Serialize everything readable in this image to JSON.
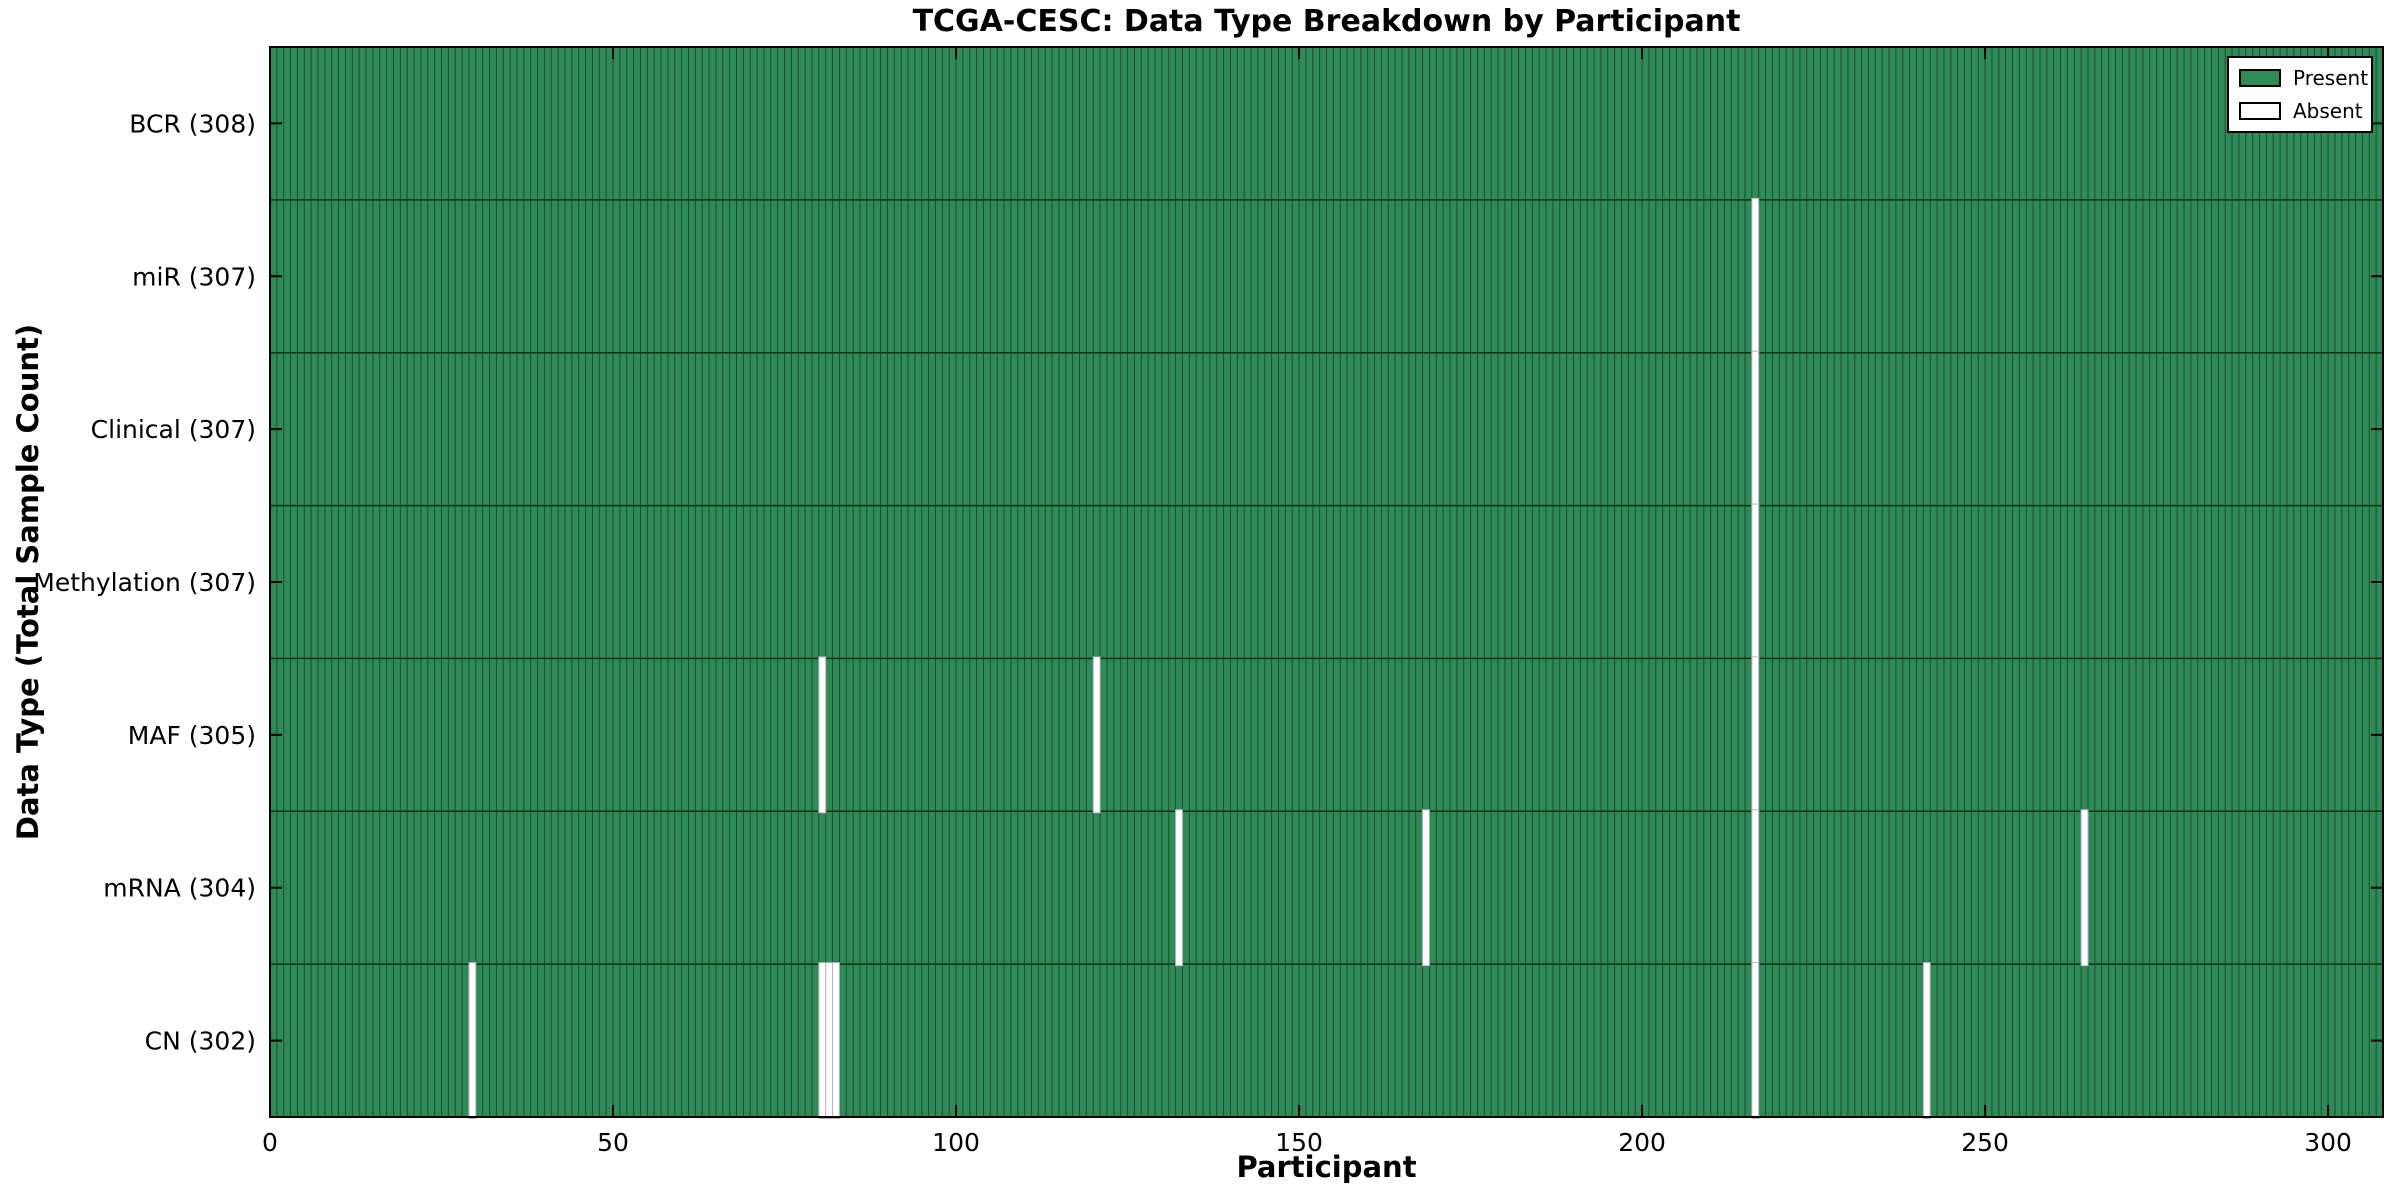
{
  "chart_data": {
    "type": "heatmap",
    "title": "TCGA-CESC: Data Type Breakdown by Participant",
    "xlabel": "Participant",
    "ylabel": "Data Type (Total Sample Count)",
    "n_participants": 308,
    "x_ticks": [
      0,
      50,
      100,
      150,
      200,
      250,
      300
    ],
    "x_range": [
      0,
      308
    ],
    "grid": false,
    "legend": {
      "position": "upper right",
      "entries": [
        {
          "label": "Present",
          "color": "#2e8b57"
        },
        {
          "label": "Absent",
          "color": "#ffffff"
        }
      ]
    },
    "colors": {
      "present_fill": "#2e8b57",
      "bar_edge": "#1b4d30",
      "row_divider": "#0f2f1e",
      "absent_fill": "#ffffff",
      "absent_edge": "#b8b8b8",
      "frame": "#000000"
    },
    "rows": [
      {
        "label": "BCR (308)",
        "total": 308,
        "absent_participants": []
      },
      {
        "label": "miR (307)",
        "total": 307,
        "absent_participants": [
          216
        ]
      },
      {
        "label": "Clinical (307)",
        "total": 307,
        "absent_participants": [
          216
        ]
      },
      {
        "label": "Methylation (307)",
        "total": 307,
        "absent_participants": [
          216
        ]
      },
      {
        "label": "MAF (305)",
        "total": 305,
        "absent_participants": [
          80,
          120,
          216
        ]
      },
      {
        "label": "mRNA (304)",
        "total": 304,
        "absent_participants": [
          132,
          168,
          216,
          264
        ]
      },
      {
        "label": "CN (302)",
        "total": 302,
        "absent_participants": [
          29,
          80,
          81,
          82,
          216,
          241
        ]
      }
    ]
  }
}
